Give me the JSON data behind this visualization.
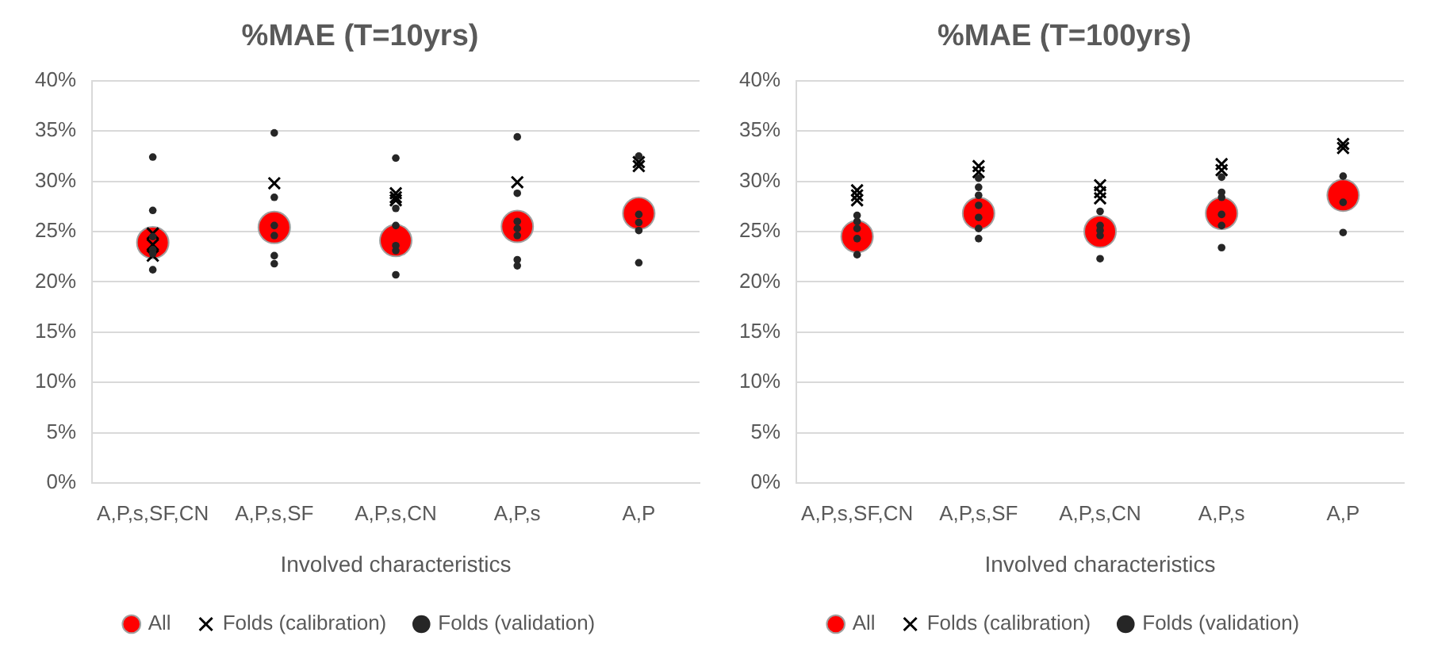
{
  "chart_data": [
    {
      "type": "scatter",
      "title": "%MAE (T=10yrs)",
      "xlabel": "Involved characteristics",
      "categories": [
        "A,P,s,SF,CN",
        "A,P,s,SF",
        "A,P,s,CN",
        "A,P,s",
        "A,P"
      ],
      "ylim": [
        0,
        40
      ],
      "yticks": [
        {
          "value": 0,
          "label": "0%"
        },
        {
          "value": 5,
          "label": "5%"
        },
        {
          "value": 10,
          "label": "10%"
        },
        {
          "value": 15,
          "label": "15%"
        },
        {
          "value": 20,
          "label": "20%"
        },
        {
          "value": 25,
          "label": "25%"
        },
        {
          "value": 30,
          "label": "30%"
        },
        {
          "value": 35,
          "label": "35%"
        },
        {
          "value": 40,
          "label": "40%"
        }
      ],
      "grid": "y",
      "legend": "bottom",
      "series": [
        {
          "name": "All",
          "color": "#ff0000",
          "marker": "circle",
          "x": [
            "A,P,s,SF,CN",
            "A,P,s,SF",
            "A,P,s,CN",
            "A,P,s",
            "A,P"
          ],
          "values": [
            23.9,
            25.4,
            24.1,
            25.5,
            26.8
          ]
        },
        {
          "name": "Folds (calibration)",
          "color": "#000000",
          "marker": "cross",
          "x": [
            "A,P,s,SF,CN",
            "A,P,s,SF,CN",
            "A,P,s,SF,CN",
            "A,P,s,SF",
            "A,P,s,CN",
            "A,P,s,CN",
            "A,P,s,CN",
            "A,P,s",
            "A,P",
            "A,P"
          ],
          "values": [
            24.8,
            23.7,
            22.6,
            29.8,
            28.8,
            28.4,
            28.1,
            29.9,
            31.9,
            31.5
          ]
        },
        {
          "name": "Folds (validation)",
          "color": "#262626",
          "marker": "circle",
          "x": [
            "A,P,s,SF,CN",
            "A,P,s,SF,CN",
            "A,P,s,SF,CN",
            "A,P,s,SF,CN",
            "A,P,s,SF,CN",
            "A,P,s,SF,CN",
            "A,P,s,SF",
            "A,P,s,SF",
            "A,P,s,SF",
            "A,P,s,SF",
            "A,P,s,SF",
            "A,P,s,SF",
            "A,P,s,CN",
            "A,P,s,CN",
            "A,P,s,CN",
            "A,P,s,CN",
            "A,P,s,CN",
            "A,P,s,CN",
            "A,P,s",
            "A,P,s",
            "A,P,s",
            "A,P,s",
            "A,P,s",
            "A,P,s",
            "A,P,s",
            "A,P",
            "A,P",
            "A,P",
            "A,P",
            "A,P"
          ],
          "values": [
            32.4,
            27.1,
            24.5,
            23.2,
            22.8,
            21.2,
            34.8,
            28.4,
            25.6,
            24.6,
            22.6,
            21.8,
            32.3,
            27.3,
            25.6,
            23.6,
            23.1,
            20.7,
            34.4,
            28.8,
            26.0,
            25.3,
            24.6,
            22.2,
            21.6,
            32.5,
            26.7,
            25.9,
            25.1,
            21.9
          ]
        }
      ]
    },
    {
      "type": "scatter",
      "title": "%MAE (T=100yrs)",
      "xlabel": "Involved characteristics",
      "categories": [
        "A,P,s,SF,CN",
        "A,P,s,SF",
        "A,P,s,CN",
        "A,P,s",
        "A,P"
      ],
      "ylim": [
        0,
        40
      ],
      "yticks": [
        {
          "value": 0,
          "label": "0%"
        },
        {
          "value": 5,
          "label": "5%"
        },
        {
          "value": 10,
          "label": "10%"
        },
        {
          "value": 15,
          "label": "15%"
        },
        {
          "value": 20,
          "label": "20%"
        },
        {
          "value": 25,
          "label": "25%"
        },
        {
          "value": 30,
          "label": "30%"
        },
        {
          "value": 35,
          "label": "35%"
        },
        {
          "value": 40,
          "label": "40%"
        }
      ],
      "grid": "y",
      "legend": "bottom",
      "series": [
        {
          "name": "All",
          "color": "#ff0000",
          "marker": "circle",
          "x": [
            "A,P,s,SF,CN",
            "A,P,s,SF",
            "A,P,s,CN",
            "A,P,s",
            "A,P"
          ],
          "values": [
            24.5,
            26.8,
            25.0,
            26.8,
            28.6
          ]
        },
        {
          "name": "Folds (calibration)",
          "color": "#000000",
          "marker": "cross",
          "x": [
            "A,P,s,SF,CN",
            "A,P,s,SF,CN",
            "A,P,s,SF,CN",
            "A,P,s,SF",
            "A,P,s,SF",
            "A,P,s,CN",
            "A,P,s,CN",
            "A,P,s,CN",
            "A,P,s",
            "A,P,s",
            "A,P",
            "A,P"
          ],
          "values": [
            29.1,
            28.6,
            28.1,
            31.5,
            30.9,
            29.6,
            28.9,
            28.3,
            31.7,
            31.1,
            33.7,
            33.3
          ]
        },
        {
          "name": "Folds (validation)",
          "color": "#262626",
          "marker": "circle",
          "x": [
            "A,P,s,SF,CN",
            "A,P,s,SF,CN",
            "A,P,s,SF,CN",
            "A,P,s,SF,CN",
            "A,P,s,SF,CN",
            "A,P,s,SF",
            "A,P,s,SF",
            "A,P,s,SF",
            "A,P,s,SF",
            "A,P,s,SF",
            "A,P,s,SF",
            "A,P,s,SF",
            "A,P,s,CN",
            "A,P,s,CN",
            "A,P,s,CN",
            "A,P,s,CN",
            "A,P,s,CN",
            "A,P,s",
            "A,P,s",
            "A,P,s",
            "A,P,s",
            "A,P,s",
            "A,P,s",
            "A,P",
            "A,P",
            "A,P"
          ],
          "values": [
            26.6,
            26.0,
            25.3,
            24.3,
            22.7,
            30.3,
            29.4,
            28.6,
            27.6,
            26.4,
            25.3,
            24.3,
            27.0,
            25.6,
            25.1,
            24.6,
            22.3,
            30.4,
            28.9,
            28.4,
            26.7,
            25.6,
            23.4,
            30.5,
            27.9,
            24.9
          ]
        }
      ]
    }
  ]
}
